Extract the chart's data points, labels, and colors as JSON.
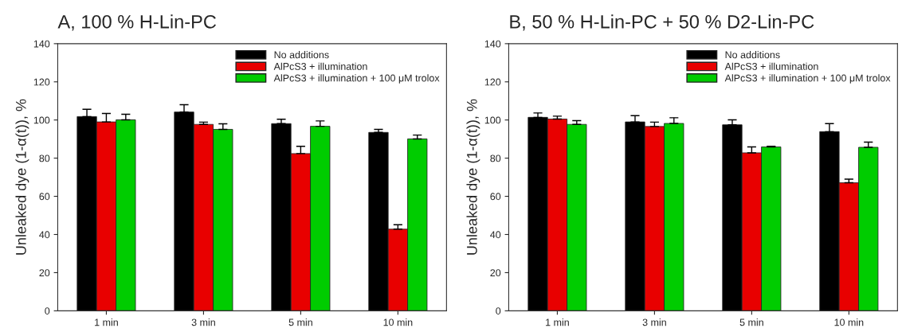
{
  "chart_data": [
    {
      "type": "bar",
      "title": "A, 100 % H-Lin-PC",
      "ylabel": "Unleaked dye (1-α(t)), %",
      "categories": [
        "1 min",
        "3 min",
        "5 min",
        "10 min"
      ],
      "ylim": [
        0,
        140
      ],
      "yticks": [
        0,
        20,
        40,
        60,
        80,
        100,
        120,
        140
      ],
      "grid": false,
      "legend": "top right",
      "series": [
        {
          "name": "No additions",
          "color": "#000000",
          "values": [
            101.8,
            104.2,
            98.1,
            93.5
          ],
          "errors": [
            [
              101.8,
              105.6
            ],
            [
              104.2,
              108.0
            ],
            [
              98.1,
              100.4
            ],
            [
              93.5,
              95.1
            ]
          ]
        },
        {
          "name": "AlPcS3 + illumination",
          "color": "#e80000",
          "values": [
            99.0,
            97.7,
            82.4,
            42.8
          ],
          "errors": [
            [
              99.0,
              103.4
            ],
            [
              97.7,
              98.9
            ],
            [
              82.4,
              86.2
            ],
            [
              42.8,
              45.1
            ]
          ]
        },
        {
          "name": "AlPcS3 + illumination + 100 μM trolox",
          "color": "#00cc00",
          "values": [
            100.1,
            95.1,
            96.7,
            90.1
          ],
          "errors": [
            [
              100.1,
              103.0
            ],
            [
              95.1,
              98.0
            ],
            [
              96.7,
              99.5
            ],
            [
              90.1,
              92.1
            ]
          ]
        }
      ]
    },
    {
      "type": "bar",
      "title": "B, 50 % H-Lin-PC + 50 % D2-Lin-PC",
      "ylabel": "Unleaked dye (1-α(t)), %",
      "categories": [
        "1 min",
        "3 min",
        "5 min",
        "10 min"
      ],
      "ylim": [
        0,
        140
      ],
      "yticks": [
        0,
        20,
        40,
        60,
        80,
        100,
        120,
        140
      ],
      "grid": false,
      "legend": "top right",
      "series": [
        {
          "name": "No additions",
          "color": "#000000",
          "values": [
            101.4,
            99.0,
            97.5,
            93.9
          ],
          "errors": [
            [
              101.4,
              103.7
            ],
            [
              99.0,
              102.3
            ],
            [
              97.5,
              100.1
            ],
            [
              93.9,
              98.1
            ]
          ]
        },
        {
          "name": "AlPcS3 + illumination",
          "color": "#e80000",
          "values": [
            100.5,
            96.6,
            82.8,
            67.1
          ],
          "errors": [
            [
              100.5,
              102.0
            ],
            [
              96.6,
              98.9
            ],
            [
              82.8,
              85.9
            ],
            [
              67.1,
              69.0
            ]
          ]
        },
        {
          "name": "AlPcS3 + illumination + 100 μM trolox",
          "color": "#00cc00",
          "values": [
            97.7,
            98.2,
            85.9,
            85.7
          ],
          "errors": [
            [
              97.7,
              99.7
            ],
            [
              98.2,
              101.2
            ],
            [
              85.9,
              86.2
            ],
            [
              85.7,
              88.4
            ]
          ]
        }
      ]
    }
  ]
}
